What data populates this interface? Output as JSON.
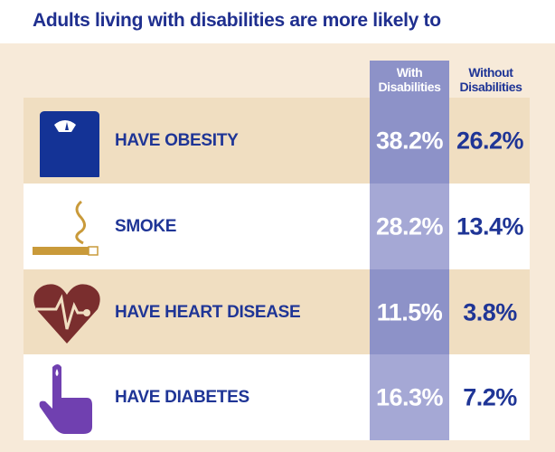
{
  "title": "Adults living with disabilities are more likely to",
  "columns": {
    "with": "With Disabilities",
    "without": "Without Disabilities",
    "with_l1": "With",
    "with_l2": "Disabilities",
    "without_l1": "Without",
    "without_l2": "Disabilities"
  },
  "colors": {
    "title": "#1f2f8f",
    "with_band_tan": "#8d92c8",
    "with_band_white": "#a5a8d5",
    "row_tan": "#f0dec1",
    "background": "#f7ead9"
  },
  "chart_data": {
    "type": "table",
    "title": "Adults living with disabilities are more likely to",
    "columns": [
      "With Disabilities",
      "Without Disabilities"
    ],
    "rows": [
      {
        "label": "HAVE OBESITY",
        "icon": "scale-icon",
        "with": "38.2%",
        "without": "26.2%"
      },
      {
        "label": "SMOKE",
        "icon": "cigarette-icon",
        "with": "28.2%",
        "without": "13.4%"
      },
      {
        "label": "HAVE HEART DISEASE",
        "icon": "heart-pulse-icon",
        "with": "11.5%",
        "without": "3.8%"
      },
      {
        "label": "HAVE DIABETES",
        "icon": "finger-blood-drop-icon",
        "with": "16.3%",
        "without": "7.2%"
      }
    ]
  }
}
